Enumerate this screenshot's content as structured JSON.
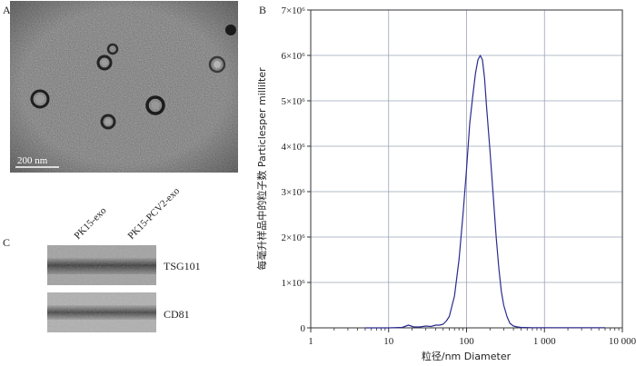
{
  "panels": {
    "a": "A",
    "b": "B",
    "c": "C"
  },
  "panel_a": {
    "scale_bar_label": "200 nm"
  },
  "panel_c": {
    "lanes": [
      "PK15-exo",
      "PK15-PCV2-exo"
    ],
    "bands": [
      "TSG101",
      "CD81"
    ]
  },
  "chart_data": {
    "type": "line",
    "title": "",
    "xlabel": "粒径/nm  Diameter",
    "ylabel": "每毫升样品中的粒子数  Particlesper millilter",
    "x_scale": "log",
    "xlim": [
      1,
      10000
    ],
    "ylim": [
      0,
      7000000
    ],
    "x_tick_labels": [
      "1",
      "10",
      "100",
      "1 000",
      "10 000"
    ],
    "y_tick_labels": [
      "0",
      "1×10⁶",
      "2×10⁶",
      "3×10⁶",
      "4×10⁶",
      "5×10⁶",
      "6×10⁶",
      "7×10⁶"
    ],
    "grid": true,
    "series": [
      {
        "color": "#2b2b8f",
        "x": [
          5,
          10,
          15,
          18,
          21,
          25,
          30,
          35,
          40,
          45,
          50,
          55,
          60,
          70,
          80,
          90,
          100,
          110,
          120,
          130,
          140,
          150,
          160,
          170,
          180,
          200,
          220,
          240,
          260,
          280,
          300,
          330,
          360,
          400,
          450,
          500,
          700,
          1000,
          2000,
          6000
        ],
        "y": [
          0,
          0,
          10000,
          60000,
          20000,
          20000,
          40000,
          30000,
          60000,
          60000,
          80000,
          150000,
          250000,
          700000,
          1500000,
          2500000,
          3500000,
          4500000,
          5100000,
          5600000,
          5900000,
          6000000,
          5900000,
          5500000,
          4900000,
          3900000,
          2900000,
          2000000,
          1300000,
          800000,
          500000,
          250000,
          100000,
          40000,
          20000,
          10000,
          5000,
          5000,
          5000,
          5000
        ]
      }
    ]
  }
}
